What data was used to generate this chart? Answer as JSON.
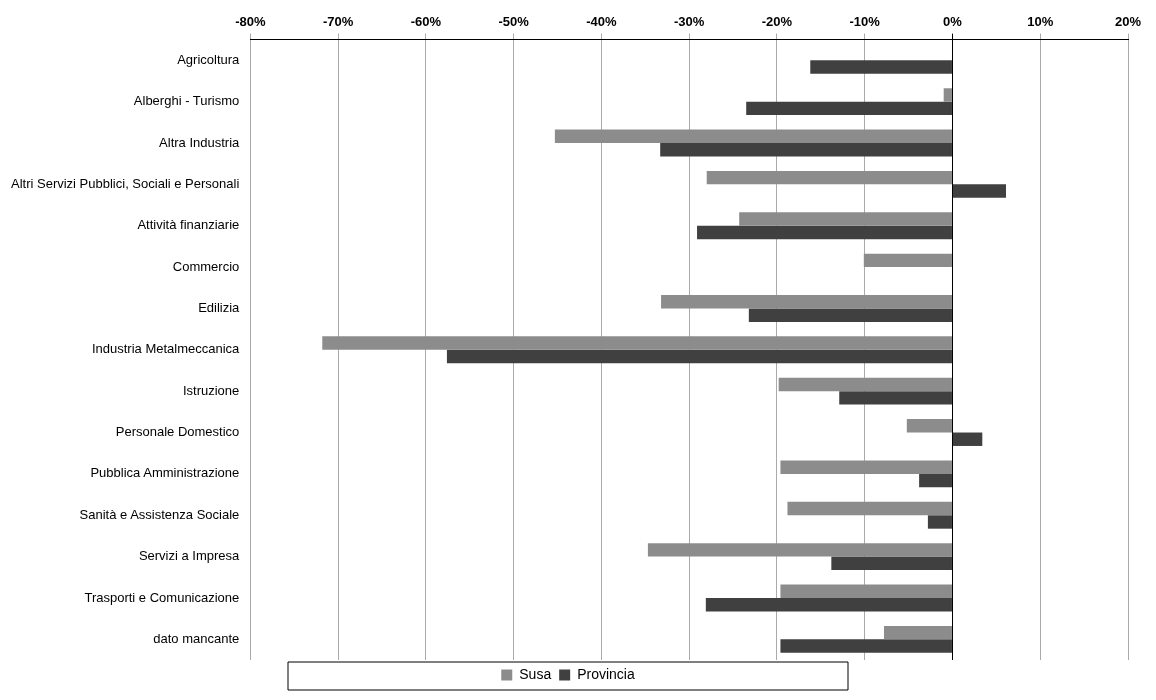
{
  "chart_data": {
    "type": "bar",
    "orientation": "horizontal",
    "categories": [
      "Agricoltura",
      "Alberghi - Turismo",
      "Altra Industria",
      "Altri Servizi Pubblici, Sociali e Personali",
      "Attività finanziarie",
      "Commercio",
      "Edilizia",
      "Industria Metalmeccanica",
      "Istruzione",
      "Personale Domestico",
      "Pubblica Amministrazione",
      "Sanità e Assistenza Sociale",
      "Servizi a Impresa",
      "Trasporti e Comunicazione",
      "dato mancante"
    ],
    "series": [
      {
        "name": "Susa",
        "color": "#8c8c8c",
        "values": [
          null,
          -1.0,
          -45.3,
          -28.0,
          -24.3,
          -10.1,
          -33.2,
          -71.8,
          -19.8,
          -5.2,
          -19.6,
          -18.8,
          -34.7,
          -19.6,
          -7.8
        ]
      },
      {
        "name": "Provincia",
        "color": "#404040",
        "values": [
          -16.2,
          -23.5,
          -33.3,
          6.1,
          -29.1,
          null,
          -23.2,
          -57.6,
          -12.9,
          3.4,
          -3.8,
          -2.8,
          -13.8,
          -28.1,
          -19.6
        ]
      }
    ],
    "xlim": [
      -80,
      20
    ],
    "xticks": [
      {
        "value": -80,
        "label": "-80%"
      },
      {
        "value": -70,
        "label": "-70%"
      },
      {
        "value": -60,
        "label": "-60%"
      },
      {
        "value": -50,
        "label": "-50%"
      },
      {
        "value": -40,
        "label": "-40%"
      },
      {
        "value": -30,
        "label": "-30%"
      },
      {
        "value": -20,
        "label": "-20%"
      },
      {
        "value": -10,
        "label": "-10%"
      },
      {
        "value": 0,
        "label": "0%"
      },
      {
        "value": 10,
        "label": "10%"
      },
      {
        "value": 20,
        "label": "20%"
      }
    ],
    "grid": "x",
    "legend": "bottom"
  }
}
